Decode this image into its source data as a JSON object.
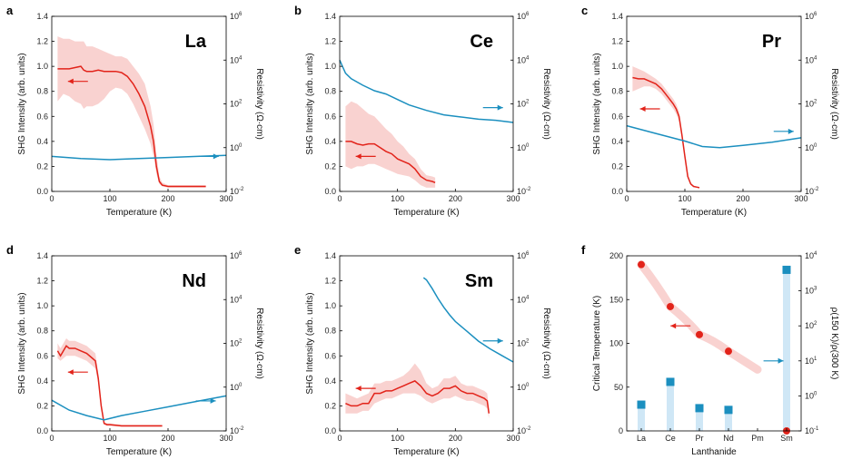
{
  "colors": {
    "shg": "#e2231a",
    "shade": "#f7c3c0",
    "res": "#1b8fbf",
    "bar": "#cfe7f6",
    "marker": "#1b8fbf"
  },
  "chart_data": [
    {
      "panel": "a",
      "element": "La",
      "type": "line",
      "xlabel": "Temperature (K)",
      "ylabel": "SHG Intensity  (arb. units)",
      "y2label": "Resistivity  (Ω·cm)",
      "xlim": [
        0,
        300
      ],
      "ylim": [
        0,
        1.4
      ],
      "y2lim_log10": [
        -2,
        6
      ],
      "y2scale": "log",
      "xticks": [
        "0",
        "100",
        "200",
        "300"
      ],
      "yticks": [
        "0.0",
        "0.2",
        "0.4",
        "0.6",
        "0.8",
        "1.0",
        "1.2",
        "1.4"
      ],
      "y2ticks": [
        {
          "base": "10",
          "exp": "-2"
        },
        {
          "base": "10",
          "exp": "0"
        },
        {
          "base": "10",
          "exp": "2"
        },
        {
          "base": "10",
          "exp": "4"
        },
        {
          "base": "10",
          "exp": "6"
        }
      ],
      "series": [
        {
          "axis": "left",
          "x": [
            10,
            20,
            30,
            40,
            50,
            55,
            60,
            70,
            80,
            90,
            100,
            110,
            120,
            130,
            140,
            150,
            160,
            170,
            175,
            180,
            185,
            190,
            200,
            220,
            240,
            265
          ],
          "y": [
            0.98,
            0.98,
            0.98,
            0.99,
            1.0,
            0.97,
            0.96,
            0.96,
            0.97,
            0.96,
            0.96,
            0.96,
            0.95,
            0.92,
            0.86,
            0.78,
            0.68,
            0.52,
            0.4,
            0.2,
            0.08,
            0.05,
            0.04,
            0.04,
            0.04,
            0.04
          ],
          "y_low": [
            0.72,
            0.78,
            0.76,
            0.72,
            0.7,
            0.66,
            0.68,
            0.68,
            0.7,
            0.74,
            0.8,
            0.83,
            0.82,
            0.78,
            0.7,
            0.6,
            0.5,
            0.38,
            0.28,
            0.14,
            0.06,
            0.04,
            0.03,
            0.03,
            0.03,
            0.03
          ],
          "y_high": [
            1.24,
            1.22,
            1.22,
            1.2,
            1.2,
            1.2,
            1.16,
            1.16,
            1.14,
            1.12,
            1.1,
            1.08,
            1.08,
            1.06,
            1.0,
            0.94,
            0.86,
            0.68,
            0.54,
            0.3,
            0.12,
            0.07,
            0.05,
            0.05,
            0.05,
            0.05
          ]
        },
        {
          "axis": "right",
          "x": [
            0,
            50,
            100,
            150,
            200,
            250,
            300
          ],
          "log10_y": [
            -0.4,
            -0.5,
            -0.55,
            -0.5,
            -0.45,
            -0.4,
            -0.35
          ]
        }
      ],
      "arrows": [
        {
          "dir": "left",
          "x": 45,
          "y": 0.88
        },
        {
          "dir": "right",
          "x": 270,
          "y": 0.28
        }
      ]
    },
    {
      "panel": "b",
      "element": "Ce",
      "type": "line",
      "xlabel": "Temperature (K)",
      "ylabel": "SHG Intensity  (arb. units)",
      "y2label": "Resistivity  (Ω·cm)",
      "xlim": [
        0,
        300
      ],
      "ylim": [
        0,
        1.4
      ],
      "y2lim_log10": [
        -2,
        6
      ],
      "y2scale": "log",
      "xticks": [
        "0",
        "100",
        "200",
        "300"
      ],
      "yticks": [
        "0.0",
        "0.2",
        "0.4",
        "0.6",
        "0.8",
        "1.0",
        "1.2",
        "1.4"
      ],
      "y2ticks": [
        {
          "base": "10",
          "exp": "-2"
        },
        {
          "base": "10",
          "exp": "0"
        },
        {
          "base": "10",
          "exp": "2"
        },
        {
          "base": "10",
          "exp": "4"
        },
        {
          "base": "10",
          "exp": "6"
        }
      ],
      "series": [
        {
          "axis": "left",
          "x": [
            10,
            20,
            30,
            40,
            50,
            60,
            70,
            80,
            90,
            100,
            110,
            120,
            130,
            140,
            150,
            160,
            165
          ],
          "y": [
            0.4,
            0.4,
            0.38,
            0.37,
            0.38,
            0.38,
            0.35,
            0.32,
            0.3,
            0.26,
            0.24,
            0.22,
            0.18,
            0.12,
            0.09,
            0.08,
            0.07
          ],
          "y_low": [
            0.2,
            0.18,
            0.2,
            0.2,
            0.22,
            0.22,
            0.2,
            0.18,
            0.16,
            0.14,
            0.13,
            0.12,
            0.09,
            0.05,
            0.03,
            0.03,
            0.03
          ],
          "y_high": [
            0.68,
            0.72,
            0.7,
            0.66,
            0.62,
            0.6,
            0.55,
            0.5,
            0.46,
            0.4,
            0.36,
            0.3,
            0.26,
            0.18,
            0.13,
            0.12,
            0.11
          ]
        },
        {
          "axis": "right",
          "x": [
            0,
            5,
            10,
            20,
            40,
            60,
            80,
            100,
            120,
            150,
            180,
            210,
            240,
            270,
            300
          ],
          "log10_y": [
            4.0,
            3.7,
            3.4,
            3.15,
            2.85,
            2.6,
            2.45,
            2.2,
            1.95,
            1.7,
            1.5,
            1.4,
            1.3,
            1.25,
            1.15
          ]
        }
      ],
      "arrows": [
        {
          "dir": "left",
          "x": 45,
          "y": 0.28
        },
        {
          "dir": "right",
          "x": 265,
          "y": 0.67
        }
      ]
    },
    {
      "panel": "c",
      "element": "Pr",
      "type": "line",
      "xlabel": "Temperature (K)",
      "ylabel": "SHG Intensity  (arb. units)",
      "y2label": "Resistivity  (Ω·cm)",
      "xlim": [
        0,
        300
      ],
      "ylim": [
        0,
        1.4
      ],
      "y2lim_log10": [
        -2,
        6
      ],
      "y2scale": "log",
      "xticks": [
        "0",
        "100",
        "200",
        "300"
      ],
      "yticks": [
        "0.0",
        "0.2",
        "0.4",
        "0.6",
        "0.8",
        "1.0",
        "1.2",
        "1.4"
      ],
      "y2ticks": [
        {
          "base": "10",
          "exp": "-2"
        },
        {
          "base": "10",
          "exp": "0"
        },
        {
          "base": "10",
          "exp": "2"
        },
        {
          "base": "10",
          "exp": "4"
        },
        {
          "base": "10",
          "exp": "6"
        }
      ],
      "series": [
        {
          "axis": "left",
          "x": [
            10,
            20,
            30,
            40,
            50,
            60,
            70,
            80,
            85,
            90,
            95,
            100,
            105,
            110,
            115,
            120,
            125
          ],
          "y": [
            0.91,
            0.9,
            0.9,
            0.88,
            0.86,
            0.82,
            0.76,
            0.7,
            0.66,
            0.6,
            0.45,
            0.28,
            0.12,
            0.06,
            0.04,
            0.035,
            0.03
          ],
          "y_low": [
            0.8,
            0.82,
            0.84,
            0.84,
            0.82,
            0.78,
            0.72,
            0.66,
            0.62,
            0.56,
            0.42,
            0.26,
            0.11,
            0.05,
            0.035,
            0.03,
            0.025
          ],
          "y_high": [
            1.0,
            0.98,
            0.96,
            0.93,
            0.9,
            0.86,
            0.8,
            0.74,
            0.7,
            0.64,
            0.48,
            0.3,
            0.13,
            0.07,
            0.045,
            0.04,
            0.035
          ]
        },
        {
          "axis": "right",
          "x": [
            0,
            50,
            100,
            130,
            160,
            200,
            250,
            300
          ],
          "log10_y": [
            1.0,
            0.65,
            0.3,
            0.05,
            0.0,
            0.1,
            0.25,
            0.45
          ]
        }
      ],
      "arrows": [
        {
          "dir": "left",
          "x": 40,
          "y": 0.66
        },
        {
          "dir": "right",
          "x": 270,
          "y": 0.48
        }
      ]
    },
    {
      "panel": "d",
      "element": "Nd",
      "type": "line",
      "xlabel": "Temperature (K)",
      "ylabel": "SHG Intensity  (arb. units)",
      "y2label": "Resistivity  (Ω·cm)",
      "xlim": [
        0,
        300
      ],
      "ylim": [
        0,
        1.4
      ],
      "y2lim_log10": [
        -2,
        6
      ],
      "y2scale": "log",
      "xticks": [
        "0",
        "100",
        "200",
        "300"
      ],
      "yticks": [
        "0.0",
        "0.2",
        "0.4",
        "0.6",
        "0.8",
        "1.0",
        "1.2",
        "1.4"
      ],
      "y2ticks": [
        {
          "base": "10",
          "exp": "-2"
        },
        {
          "base": "10",
          "exp": "0"
        },
        {
          "base": "10",
          "exp": "2"
        },
        {
          "base": "10",
          "exp": "4"
        },
        {
          "base": "10",
          "exp": "6"
        }
      ],
      "series": [
        {
          "axis": "left",
          "x": [
            10,
            15,
            20,
            25,
            30,
            40,
            50,
            60,
            70,
            75,
            80,
            85,
            90,
            95,
            100,
            120,
            150,
            190
          ],
          "y": [
            0.64,
            0.6,
            0.64,
            0.68,
            0.66,
            0.66,
            0.64,
            0.62,
            0.58,
            0.56,
            0.42,
            0.2,
            0.06,
            0.05,
            0.05,
            0.04,
            0.04,
            0.04
          ],
          "y_low": [
            0.58,
            0.56,
            0.58,
            0.6,
            0.6,
            0.6,
            0.58,
            0.56,
            0.52,
            0.5,
            0.38,
            0.17,
            0.05,
            0.04,
            0.04,
            0.035,
            0.035,
            0.035
          ],
          "y_high": [
            0.7,
            0.66,
            0.7,
            0.74,
            0.72,
            0.72,
            0.7,
            0.68,
            0.64,
            0.62,
            0.46,
            0.23,
            0.07,
            0.06,
            0.06,
            0.05,
            0.05,
            0.05
          ]
        },
        {
          "axis": "right",
          "x": [
            0,
            30,
            60,
            90,
            120,
            160,
            200,
            250,
            300
          ],
          "log10_y": [
            -0.6,
            -1.05,
            -1.3,
            -1.5,
            -1.3,
            -1.1,
            -0.9,
            -0.65,
            -0.4
          ]
        }
      ],
      "arrows": [
        {
          "dir": "left",
          "x": 45,
          "y": 0.47
        },
        {
          "dir": "right",
          "x": 265,
          "y": 0.24
        }
      ]
    },
    {
      "panel": "e",
      "element": "Sm",
      "type": "line",
      "xlabel": "Temperature (K)",
      "ylabel": "SHG Intensity  (arb. units)",
      "y2label": "Resistivity  (Ω·cm)",
      "xlim": [
        0,
        300
      ],
      "ylim": [
        0,
        1.4
      ],
      "y2lim_log10": [
        -2,
        6
      ],
      "y2scale": "log",
      "xticks": [
        "0",
        "100",
        "200",
        "300"
      ],
      "yticks": [
        "0.0",
        "0.2",
        "0.4",
        "0.6",
        "0.8",
        "1.0",
        "1.2",
        "1.4"
      ],
      "y2ticks": [
        {
          "base": "10",
          "exp": "-2"
        },
        {
          "base": "10",
          "exp": "0"
        },
        {
          "base": "10",
          "exp": "2"
        },
        {
          "base": "10",
          "exp": "4"
        },
        {
          "base": "10",
          "exp": "6"
        }
      ],
      "series": [
        {
          "axis": "left",
          "x": [
            10,
            20,
            30,
            40,
            50,
            60,
            70,
            80,
            90,
            100,
            110,
            120,
            130,
            140,
            150,
            160,
            170,
            180,
            190,
            200,
            210,
            220,
            230,
            240,
            250,
            255,
            258
          ],
          "y": [
            0.22,
            0.2,
            0.2,
            0.22,
            0.22,
            0.3,
            0.3,
            0.32,
            0.32,
            0.34,
            0.36,
            0.38,
            0.4,
            0.36,
            0.3,
            0.28,
            0.3,
            0.34,
            0.34,
            0.36,
            0.32,
            0.3,
            0.3,
            0.28,
            0.26,
            0.24,
            0.14
          ],
          "y_low": [
            0.14,
            0.14,
            0.14,
            0.16,
            0.16,
            0.22,
            0.24,
            0.26,
            0.26,
            0.28,
            0.3,
            0.3,
            0.3,
            0.28,
            0.24,
            0.22,
            0.24,
            0.26,
            0.26,
            0.28,
            0.26,
            0.24,
            0.24,
            0.22,
            0.2,
            0.18,
            0.1
          ],
          "y_high": [
            0.3,
            0.28,
            0.26,
            0.28,
            0.3,
            0.38,
            0.38,
            0.4,
            0.4,
            0.42,
            0.44,
            0.48,
            0.54,
            0.48,
            0.38,
            0.34,
            0.36,
            0.42,
            0.42,
            0.44,
            0.38,
            0.36,
            0.36,
            0.34,
            0.32,
            0.3,
            0.18
          ]
        },
        {
          "axis": "right",
          "x": [
            145,
            150,
            160,
            170,
            180,
            190,
            200,
            220,
            240,
            260,
            280,
            300
          ],
          "log10_y": [
            5.0,
            4.9,
            4.5,
            4.05,
            3.65,
            3.3,
            3.0,
            2.55,
            2.1,
            1.75,
            1.45,
            1.15
          ]
        }
      ],
      "arrows": [
        {
          "dir": "left",
          "x": 45,
          "y": 0.34
        },
        {
          "dir": "right",
          "x": 265,
          "y": 0.72
        }
      ]
    },
    {
      "panel": "f",
      "type": "scatter",
      "xlabel": "Lanthanide",
      "ylabel": "Critical Temperature  (K)",
      "y2label": "ρ(150 K)/ρ(300 K)",
      "categories": [
        "La",
        "Ce",
        "Pr",
        "Nd",
        "Pm",
        "Sm"
      ],
      "ylim": [
        0,
        200
      ],
      "y2lim_log10": [
        -1,
        4
      ],
      "y2scale": "log",
      "yticks": [
        "0",
        "50",
        "100",
        "150",
        "200"
      ],
      "y2ticks": [
        {
          "base": "10",
          "exp": "-1"
        },
        {
          "base": "10",
          "exp": "0"
        },
        {
          "base": "10",
          "exp": "1"
        },
        {
          "base": "10",
          "exp": "2"
        },
        {
          "base": "10",
          "exp": "3"
        },
        {
          "base": "10",
          "exp": "4"
        }
      ],
      "series": [
        {
          "name": "",
          "axis": "left",
          "marker": "circle",
          "categories": [
            "La",
            "Ce",
            "Pr",
            "Nd",
            "Sm"
          ],
          "values": [
            190,
            142,
            110,
            91,
            0
          ]
        },
        {
          "name": "",
          "axis": "right",
          "marker": "square",
          "categories": [
            "La",
            "Ce",
            "Pr",
            "Nd",
            "Sm"
          ],
          "log10_values": [
            -0.25,
            0.4,
            -0.35,
            -0.4,
            3.6
          ]
        }
      ],
      "arrows": [
        {
          "dir": "left",
          "category_index": 1.35,
          "y": 120
        },
        {
          "dir": "right",
          "category_index": 4.55,
          "y": 10
        }
      ]
    }
  ]
}
